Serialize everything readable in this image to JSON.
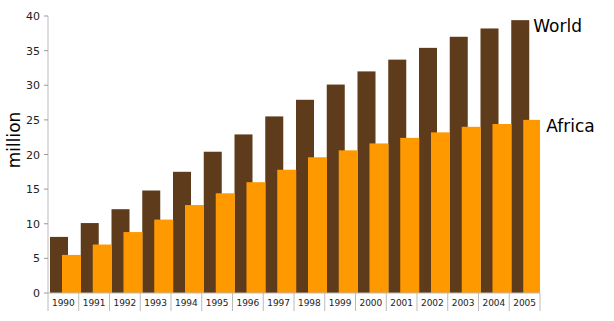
{
  "chart_data": {
    "type": "bar",
    "y_label": "million",
    "categories": [
      "1990",
      "1991",
      "1992",
      "1993",
      "1994",
      "1995",
      "1996",
      "1997",
      "1998",
      "1999",
      "2000",
      "2001",
      "2002",
      "2003",
      "2004",
      "2005"
    ],
    "series": [
      {
        "name": "World",
        "color": "#5e3c1b",
        "values": [
          8.1,
          10.1,
          12.1,
          14.8,
          17.5,
          20.4,
          22.9,
          25.5,
          27.9,
          30.1,
          32.0,
          33.7,
          35.4,
          37.0,
          38.2,
          39.4
        ]
      },
      {
        "name": "Africa",
        "color": "#ff9900",
        "values": [
          5.5,
          7.0,
          8.8,
          10.6,
          12.7,
          14.4,
          16.0,
          17.8,
          19.6,
          20.6,
          21.6,
          22.4,
          23.2,
          24.0,
          24.4,
          25.0
        ]
      }
    ],
    "ylim": [
      0,
      40
    ],
    "yticks": [
      0,
      5,
      10,
      15,
      20,
      25,
      30,
      35,
      40
    ],
    "grid": false
  }
}
